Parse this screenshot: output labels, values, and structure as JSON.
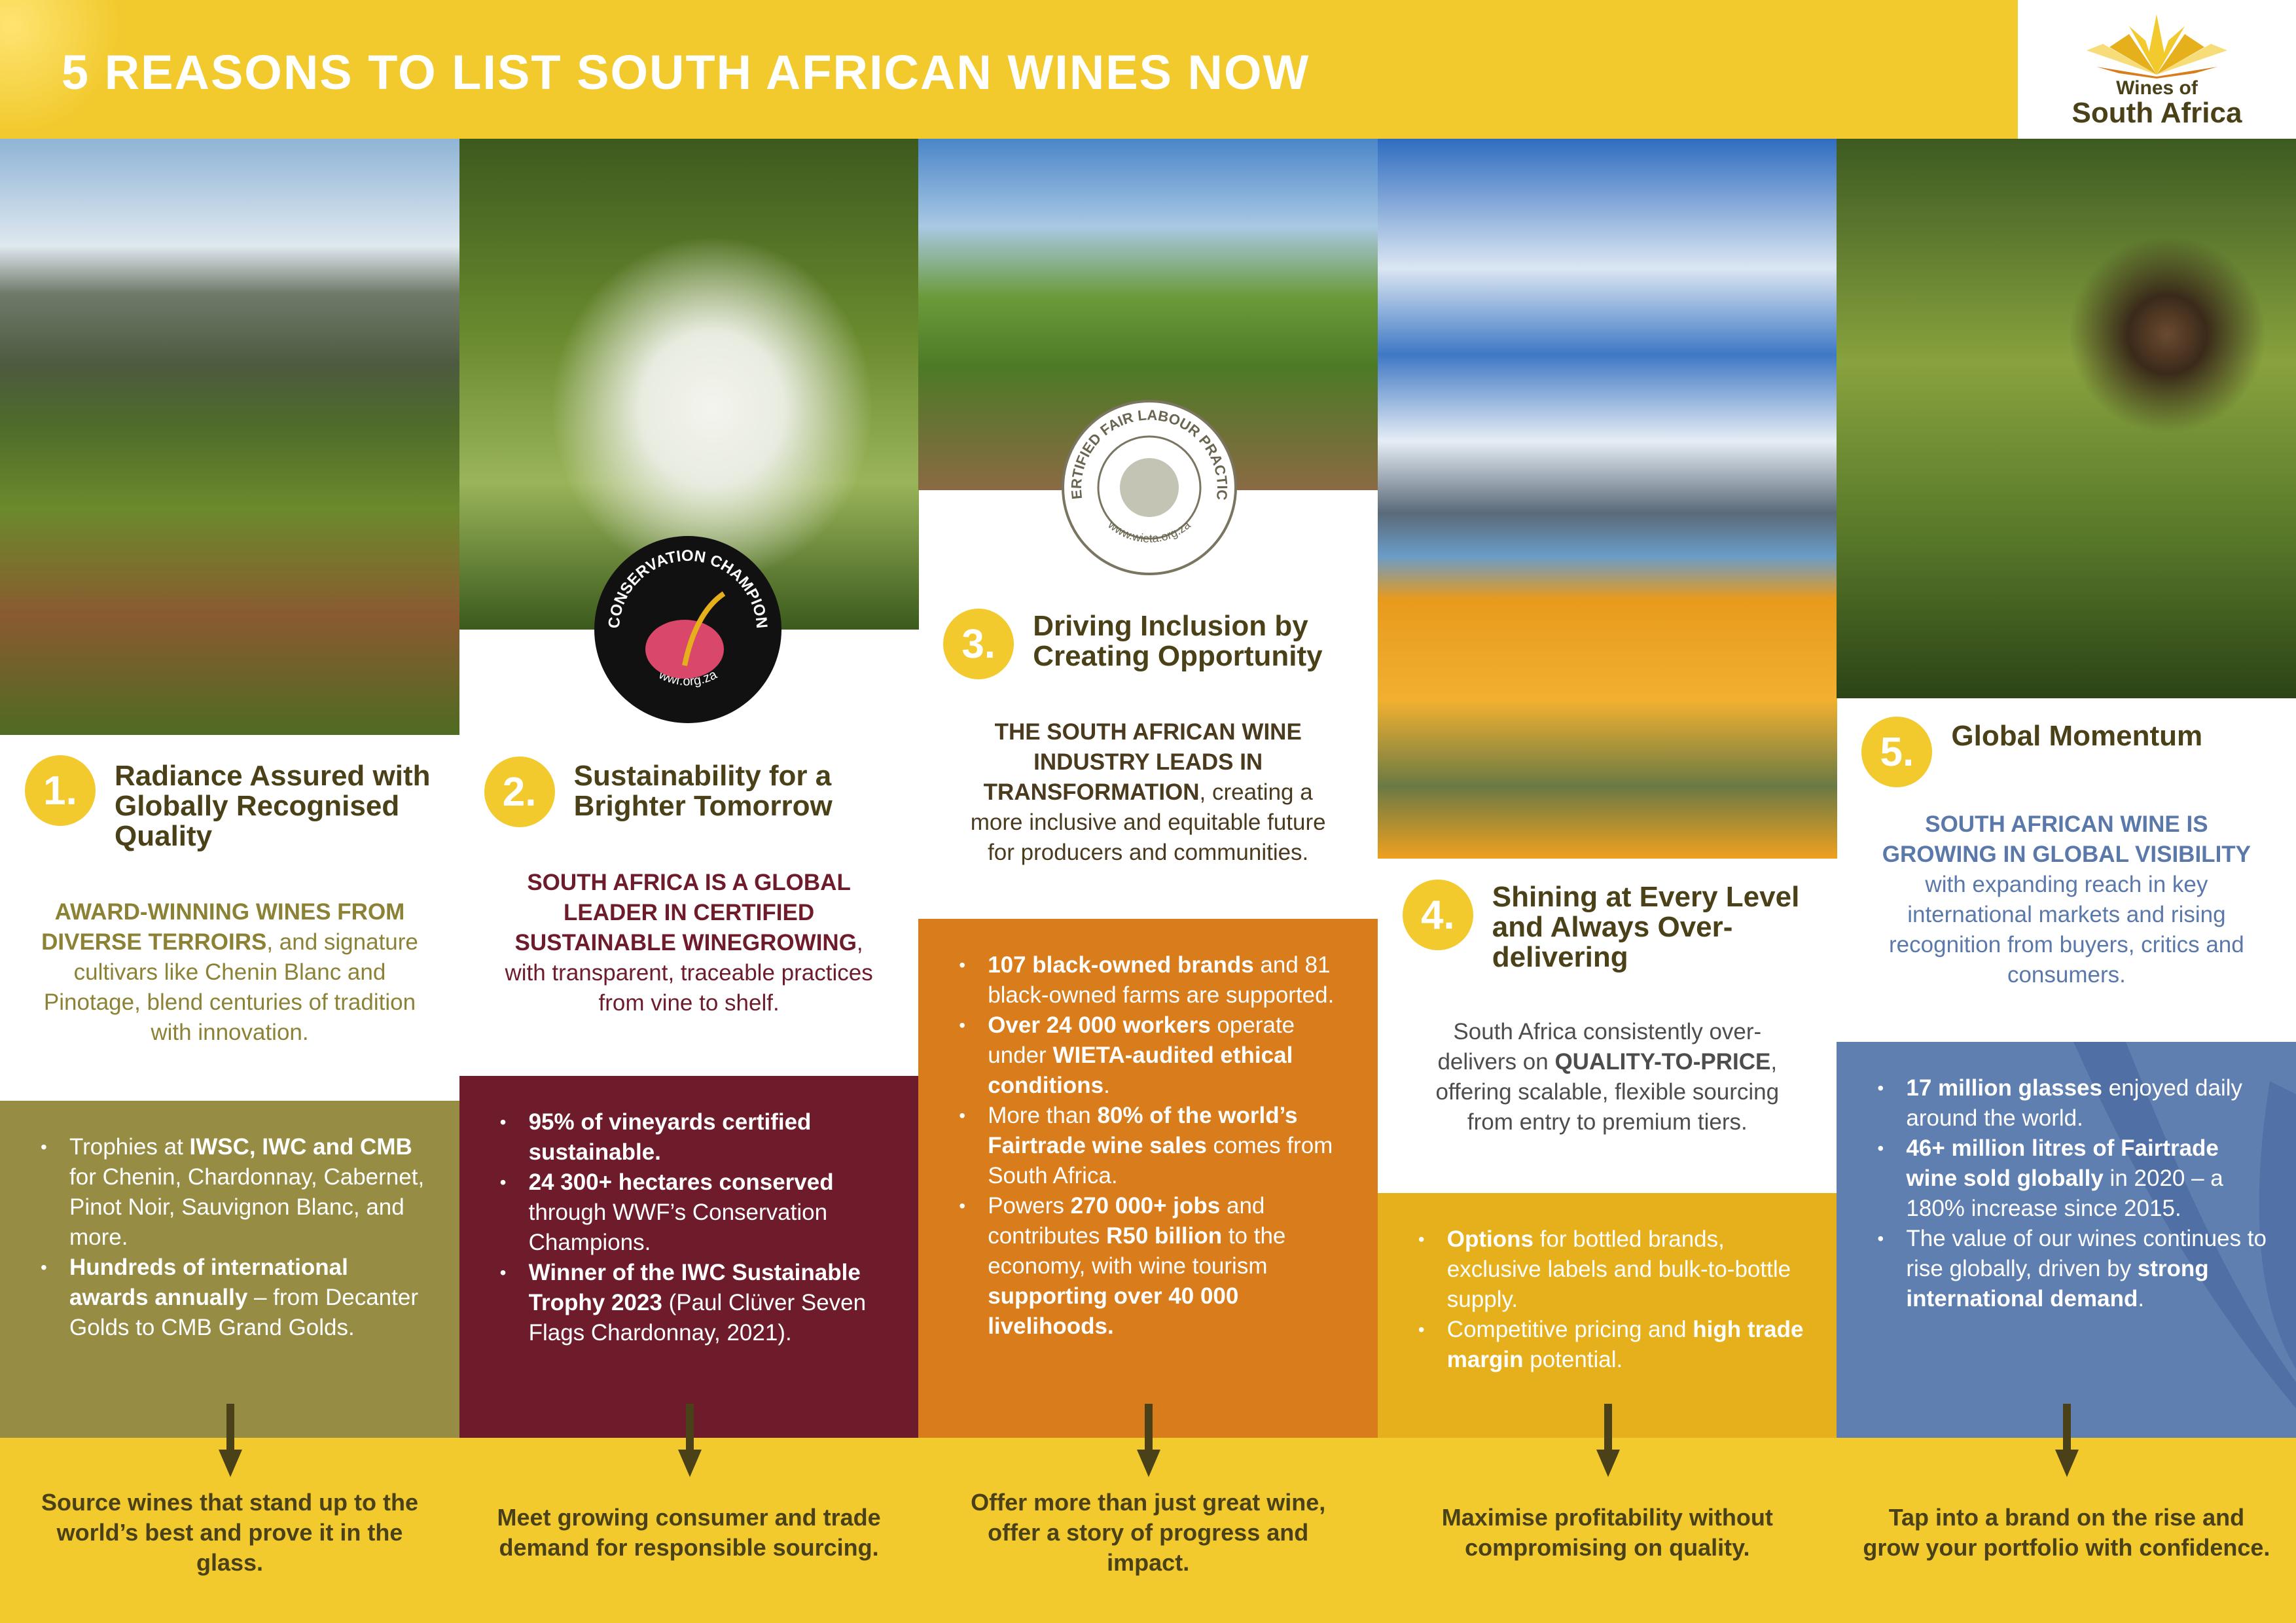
{
  "header": {
    "title": "5 REASONS TO LIST SOUTH AFRICAN WINES NOW"
  },
  "logo": {
    "line1": "Wines of",
    "line2": "South Africa"
  },
  "colors": {
    "yellow": "#f2ca2e",
    "olive": "#968c44",
    "maroon": "#6e1c2b",
    "orange": "#d87c1c",
    "gold": "#e6b01c",
    "blue": "#5f7fb1",
    "dark": "#4a4118"
  },
  "badges": {
    "conservation": {
      "top": "CONSERVATION CHAMPION",
      "bottom": "wwf.org.za"
    },
    "wieta": {
      "top": "CERTIFIED FAIR LABOUR PRACTICE",
      "bottom": "www.wieta.org.za"
    }
  },
  "columns": [
    {
      "number": "1.",
      "heading": "Radiance Assured with Globally Recognised Quality",
      "lead_color": "#8c8236",
      "box_color": "#968c44",
      "lead": [
        {
          "t": "AWARD-WINNING WINES FROM DIVERSE TERROIRS",
          "b": true
        },
        {
          "t": ", and signature cultivars like Chenin Blanc and Pinotage, blend centuries of tradition with innovation.",
          "b": false
        }
      ],
      "bullets": [
        [
          {
            "t": "Trophies at ",
            "b": false
          },
          {
            "t": "IWSC, IWC and CMB",
            "b": true
          },
          {
            "t": " for Chenin, Chardonnay, Cabernet, Pinot Noir, Sauvignon Blanc, and more.",
            "b": false
          }
        ],
        [
          {
            "t": "Hundreds of international awards annually",
            "b": true
          },
          {
            "t": " – from Decanter Golds to CMB Grand Golds.",
            "b": false
          }
        ]
      ],
      "cta": "Source wines that stand up to the world’s best and prove it in the glass."
    },
    {
      "number": "2.",
      "heading": "Sustainability for a Brighter Tomorrow",
      "lead_color": "#6e1c2b",
      "box_color": "#6e1c2b",
      "lead": [
        {
          "t": "SOUTH AFRICA IS A GLOBAL LEADER IN CERTIFIED SUSTAINABLE WINEGROWING",
          "b": true
        },
        {
          "t": ", with transparent, traceable practices from vine to shelf.",
          "b": false
        }
      ],
      "bullets": [
        [
          {
            "t": "95% of vineyards certified sustainable.",
            "b": true
          }
        ],
        [
          {
            "t": "24 300+ hectares conserved",
            "b": true
          },
          {
            "t": " through WWF’s Conservation Champions.",
            "b": false
          }
        ],
        [
          {
            "t": "Winner of the IWC Sustainable Trophy 2023",
            "b": true
          },
          {
            "t": " (Paul Clüver Seven Flags Chardonnay, 2021).",
            "b": false
          }
        ]
      ],
      "cta": "Meet growing consumer and trade demand for responsible sourcing."
    },
    {
      "number": "3.",
      "heading": "Driving Inclusion by Creating Opportunity",
      "lead_color": "#4a3a1e",
      "box_color": "#d87c1c",
      "lead": [
        {
          "t": "THE SOUTH AFRICAN WINE INDUSTRY LEADS IN TRANSFORMATION",
          "b": true
        },
        {
          "t": ", creating a more inclusive and equitable future for producers and communities.",
          "b": false
        }
      ],
      "bullets": [
        [
          {
            "t": "107 black-owned brands",
            "b": true
          },
          {
            "t": " and 81 black-owned farms are supported.",
            "b": false
          }
        ],
        [
          {
            "t": "Over 24 000 workers",
            "b": true
          },
          {
            "t": " operate under ",
            "b": false
          },
          {
            "t": "WIETA-audited ethical conditions",
            "b": true
          },
          {
            "t": ".",
            "b": false
          }
        ],
        [
          {
            "t": "More than ",
            "b": false
          },
          {
            "t": "80% of the world’s Fairtrade wine sales",
            "b": true
          },
          {
            "t": " comes from South Africa.",
            "b": false
          }
        ],
        [
          {
            "t": "Powers ",
            "b": false
          },
          {
            "t": "270 000+ jobs",
            "b": true
          },
          {
            "t": " and contributes ",
            "b": false
          },
          {
            "t": "R50 billion",
            "b": true
          },
          {
            "t": " to the economy, with wine tourism ",
            "b": false
          },
          {
            "t": "supporting over 40 000 livelihoods.",
            "b": true
          }
        ]
      ],
      "cta": "Offer more than just great wine, offer a story of progress and impact."
    },
    {
      "number": "4.",
      "heading": "Shining at Every Level and Always Over-delivering",
      "lead_color": "#4d4d4d",
      "box_color": "#e6b01c",
      "lead": [
        {
          "t": "South Africa consistently over-delivers on ",
          "b": false
        },
        {
          "t": "QUALITY-TO-PRICE",
          "b": true
        },
        {
          "t": ", offering scalable, flexible sourcing from entry to premium tiers.",
          "b": false
        }
      ],
      "bullets": [
        [
          {
            "t": "Options",
            "b": true
          },
          {
            "t": " for bottled brands, exclusive labels and bulk-to-bottle supply.",
            "b": false
          }
        ],
        [
          {
            "t": "Competitive pricing and ",
            "b": false
          },
          {
            "t": "high trade margin",
            "b": true
          },
          {
            "t": " potential.",
            "b": false
          }
        ]
      ],
      "cta": "Maximise profitability without compromising on quality."
    },
    {
      "number": "5.",
      "heading": "Global Momentum",
      "lead_color": "#5a78aa",
      "box_color": "#5f7fb1",
      "lead": [
        {
          "t": "SOUTH AFRICAN WINE IS GROWING IN GLOBAL VISIBILITY",
          "b": true
        },
        {
          "t": " with expanding reach in key international markets and rising recognition from buyers, critics and consumers.",
          "b": false
        }
      ],
      "bullets": [
        [
          {
            "t": "17 million glasses",
            "b": true
          },
          {
            "t": " enjoyed daily around the world.",
            "b": false
          }
        ],
        [
          {
            "t": "46+ million litres of Fairtrade wine sold globally",
            "b": true
          },
          {
            "t": " in 2020 – a 180% increase since 2015.",
            "b": false
          }
        ],
        [
          {
            "t": "The value of our wines continues to rise globally, driven by ",
            "b": false
          },
          {
            "t": "strong international demand",
            "b": true
          },
          {
            "t": ".",
            "b": false
          }
        ]
      ],
      "cta": "Tap into a brand on the rise and grow your portfolio with confidence."
    }
  ]
}
